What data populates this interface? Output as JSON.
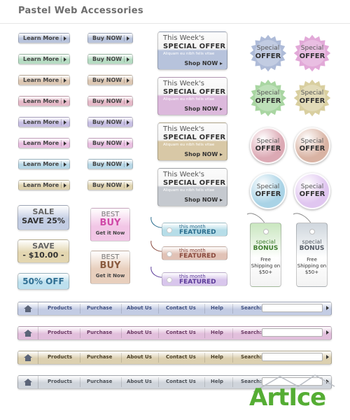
{
  "page_title": "Pastel Web Accessories",
  "learn_more_buttons": [
    {
      "label": "Learn More",
      "color": "#b9c4dc"
    },
    {
      "label": "Learn More",
      "color": "#b6dcc3"
    },
    {
      "label": "Learn More",
      "color": "#dcc7b3"
    },
    {
      "label": "Learn More",
      "color": "#e5b9c8"
    },
    {
      "label": "Learn More",
      "color": "#c7bfe3"
    },
    {
      "label": "Learn More",
      "color": "#e9bfe1"
    },
    {
      "label": "Learn More",
      "color": "#b7d7e6"
    },
    {
      "label": "Learn More",
      "color": "#dfd3b0"
    }
  ],
  "buy_now_buttons": [
    {
      "label": "Buy NOW",
      "color": "#b9c4dc"
    },
    {
      "label": "Buy NOW",
      "color": "#b6dcc3"
    },
    {
      "label": "Buy NOW",
      "color": "#dcc7b3"
    },
    {
      "label": "Buy NOW",
      "color": "#e5b9c8"
    },
    {
      "label": "Buy NOW",
      "color": "#c7bfe3"
    },
    {
      "label": "Buy NOW",
      "color": "#e9bfe1"
    },
    {
      "label": "Buy NOW",
      "color": "#b7d7e6"
    },
    {
      "label": "Buy NOW",
      "color": "#dfd3b0"
    }
  ],
  "special_offer_cards": [
    {
      "line1": "This Week's",
      "line2": "SPECIAL OFFER",
      "line3": "Aliquam eu nibh felis vitae",
      "link": "Shop NOW",
      "color": "#b7c3dc"
    },
    {
      "line1": "This Week's",
      "line2": "SPECIAL OFFER",
      "line3": "Aliquam eu nibh felis vitae",
      "link": "Shop NOW",
      "color": "#dcb9dc"
    },
    {
      "line1": "This Week's",
      "line2": "SPECIAL OFFER",
      "line3": "Aliquam eu nibh felis vitae",
      "link": "Shop NOW",
      "color": "#d8c8a6"
    },
    {
      "line1": "This Week's",
      "line2": "SPECIAL OFFER",
      "line3": "Aliquam eu nibh felis vitae",
      "link": "Shop NOW",
      "color": "#c5c9cf"
    }
  ],
  "offer_seals": [
    {
      "line1": "Special",
      "line2": "OFFER",
      "color": "#aebbd8",
      "shape": "star"
    },
    {
      "line1": "Special",
      "line2": "OFFER",
      "color": "#e2a9d8",
      "shape": "star"
    },
    {
      "line1": "Special",
      "line2": "OFFER",
      "color": "#a9d6a2",
      "shape": "star"
    },
    {
      "line1": "Special",
      "line2": "OFFER",
      "color": "#d9cfa0",
      "shape": "star"
    },
    {
      "line1": "Special",
      "line2": "OFFER",
      "color": "#dca9b4",
      "shape": "circle"
    },
    {
      "line1": "Special",
      "line2": "OFFER",
      "color": "#d9b3a3",
      "shape": "circle"
    },
    {
      "line1": "Special",
      "line2": "OFFER",
      "color": "#a9d3e6",
      "shape": "circle"
    },
    {
      "line1": "Special",
      "line2": "OFFER",
      "color": "#e0c6f0",
      "shape": "circle"
    }
  ],
  "sale_badges": [
    {
      "line1": "SALE",
      "line2": "SAVE 25%",
      "color": "#c3cde3"
    },
    {
      "line1": "SAVE",
      "line2": "- $10.00 -",
      "color": "#e3d6b0"
    },
    {
      "line1": "50% OFF",
      "color": "#bde0ee"
    }
  ],
  "best_buy_badges": [
    {
      "line1": "BEST",
      "line2": "BUY",
      "link": "Get it Now",
      "color": "#f2c6e6",
      "accent": "#d04aa8"
    },
    {
      "line1": "BEST",
      "line2": "BUY",
      "link": "Get it Now",
      "color": "#e8cfbd",
      "accent": "#8a5a3e"
    }
  ],
  "featured_tags": [
    {
      "line1": "this month",
      "line2": "FEATURED",
      "color": "#b6dde8",
      "accent": "#2a6d8e"
    },
    {
      "line1": "this month",
      "line2": "FEATURED",
      "color": "#e1c2b6",
      "accent": "#8a4a3e"
    },
    {
      "line1": "this month",
      "line2": "FEATURED",
      "color": "#d8c6ec",
      "accent": "#5c3c9a"
    }
  ],
  "bonus_tags": [
    {
      "line1": "special",
      "line2": "BONUS",
      "line3": "Free Shipping on $50+",
      "color": "#c9e6bf",
      "accent": "#3f7d2f"
    },
    {
      "line1": "special",
      "line2": "BONUS",
      "line3": "Free Shipping on $50+",
      "color": "#cfd6dd",
      "accent": "#555c66"
    }
  ],
  "nav_bars": [
    {
      "color": "#c3cce4",
      "text_color": "#3f4f80"
    },
    {
      "color": "#e2bfdc",
      "text_color": "#6b3a64"
    },
    {
      "color": "#dcd0b0",
      "text_color": "#4a3f26"
    },
    {
      "color": "#cfd4db",
      "text_color": "#4a4f56"
    }
  ],
  "nav": {
    "items": [
      "Products",
      "Purchase",
      "About Us",
      "Contact Us",
      "Help"
    ],
    "search_label": "Search:",
    "search_value": ""
  },
  "watermark": "ArtIce"
}
